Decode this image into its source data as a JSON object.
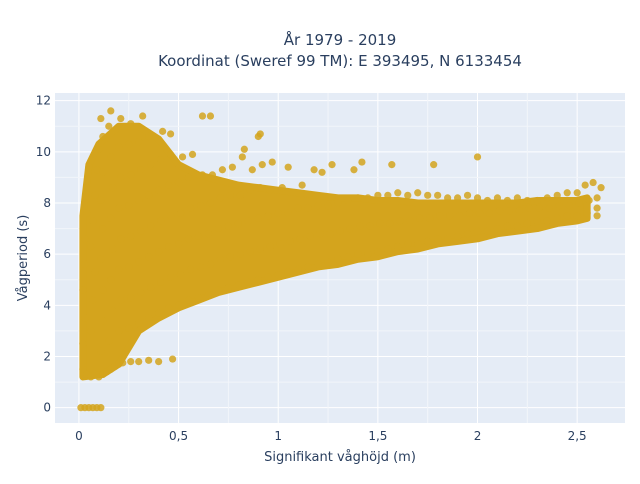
{
  "chart_data": {
    "type": "scatter",
    "title_lines": [
      "År 1979 - 2019",
      "Koordinat (Sweref 99 TM): E 393495, N 6133454"
    ],
    "xlabel": "Signifikant våghöjd (m)",
    "ylabel": "Vågperiod (s)",
    "xlim": [
      -0.12,
      2.74
    ],
    "ylim": [
      -0.6,
      12.3
    ],
    "x_ticks": [
      0,
      0.5,
      1,
      1.5,
      2,
      2.5
    ],
    "x_tick_labels": [
      "0",
      "0,5",
      "1",
      "1,5",
      "2",
      "2,5"
    ],
    "y_ticks": [
      0,
      2,
      4,
      6,
      8,
      10,
      12
    ],
    "y_tick_labels": [
      "0",
      "2",
      "4",
      "6",
      "8",
      "10",
      "12"
    ],
    "grid": true,
    "background": "#e5ecf6",
    "marker_color": "#d4a41d",
    "points": [
      [
        0.01,
        0
      ],
      [
        0.03,
        0
      ],
      [
        0.05,
        0
      ],
      [
        0.07,
        0
      ],
      [
        0.09,
        0
      ],
      [
        0.11,
        0
      ],
      [
        0.02,
        1.5
      ],
      [
        0.04,
        1.3
      ],
      [
        0.06,
        1.2
      ],
      [
        0.08,
        1.3
      ],
      [
        0.1,
        1.2
      ],
      [
        0.12,
        1.3
      ],
      [
        0.14,
        1.4
      ],
      [
        0.16,
        1.5
      ],
      [
        0.18,
        1.6
      ],
      [
        0.2,
        1.7
      ],
      [
        0.22,
        1.75
      ],
      [
        0.26,
        1.8
      ],
      [
        0.3,
        1.8
      ],
      [
        0.35,
        1.85
      ],
      [
        0.4,
        1.8
      ],
      [
        0.47,
        1.9
      ],
      [
        0.02,
        2.5
      ],
      [
        0.03,
        3.5
      ],
      [
        0.02,
        4.6
      ],
      [
        0.03,
        5.6
      ],
      [
        0.03,
        6.6
      ],
      [
        0.04,
        7.6
      ],
      [
        0.04,
        8.6
      ],
      [
        0.05,
        9.4
      ],
      [
        0.06,
        3.0
      ],
      [
        0.07,
        4.2
      ],
      [
        0.08,
        5.3
      ],
      [
        0.06,
        6.3
      ],
      [
        0.07,
        7.3
      ],
      [
        0.08,
        8.3
      ],
      [
        0.09,
        9.3
      ],
      [
        0.1,
        10.1
      ],
      [
        0.11,
        2.2
      ],
      [
        0.12,
        3.4
      ],
      [
        0.12,
        4.6
      ],
      [
        0.11,
        5.8
      ],
      [
        0.12,
        7.0
      ],
      [
        0.11,
        8.1
      ],
      [
        0.12,
        9.2
      ],
      [
        0.12,
        10.6
      ],
      [
        0.11,
        11.3
      ],
      [
        0.15,
        2.6
      ],
      [
        0.17,
        3.8
      ],
      [
        0.16,
        5.0
      ],
      [
        0.17,
        6.2
      ],
      [
        0.16,
        7.4
      ],
      [
        0.17,
        8.6
      ],
      [
        0.16,
        9.8
      ],
      [
        0.15,
        11.0
      ],
      [
        0.16,
        11.6
      ],
      [
        0.2,
        3.0
      ],
      [
        0.21,
        4.2
      ],
      [
        0.2,
        5.4
      ],
      [
        0.21,
        6.6
      ],
      [
        0.2,
        7.8
      ],
      [
        0.21,
        9.0
      ],
      [
        0.2,
        10.2
      ],
      [
        0.21,
        11.3
      ],
      [
        0.25,
        3.1
      ],
      [
        0.26,
        4.3
      ],
      [
        0.25,
        5.5
      ],
      [
        0.26,
        6.7
      ],
      [
        0.25,
        7.9
      ],
      [
        0.26,
        9.1
      ],
      [
        0.25,
        10.3
      ],
      [
        0.26,
        11.1
      ],
      [
        0.3,
        3.3
      ],
      [
        0.31,
        4.5
      ],
      [
        0.3,
        5.7
      ],
      [
        0.31,
        6.9
      ],
      [
        0.3,
        8.1
      ],
      [
        0.31,
        9.3
      ],
      [
        0.3,
        10.4
      ],
      [
        0.32,
        11.4
      ],
      [
        0.35,
        3.5
      ],
      [
        0.36,
        4.7
      ],
      [
        0.35,
        5.9
      ],
      [
        0.36,
        7.1
      ],
      [
        0.35,
        8.3
      ],
      [
        0.36,
        9.5
      ],
      [
        0.35,
        10.6
      ],
      [
        0.4,
        3.7
      ],
      [
        0.41,
        4.9
      ],
      [
        0.4,
        6.1
      ],
      [
        0.41,
        7.3
      ],
      [
        0.4,
        8.5
      ],
      [
        0.41,
        9.7
      ],
      [
        0.42,
        10.8
      ],
      [
        0.45,
        3.9
      ],
      [
        0.46,
        5.1
      ],
      [
        0.45,
        6.3
      ],
      [
        0.46,
        7.5
      ],
      [
        0.45,
        8.7
      ],
      [
        0.46,
        9.9
      ],
      [
        0.46,
        10.7
      ],
      [
        0.5,
        4.0
      ],
      [
        0.51,
        5.2
      ],
      [
        0.5,
        6.4
      ],
      [
        0.51,
        7.6
      ],
      [
        0.5,
        8.8
      ],
      [
        0.52,
        9.8
      ],
      [
        0.55,
        4.2
      ],
      [
        0.56,
        5.4
      ],
      [
        0.55,
        6.6
      ],
      [
        0.56,
        7.8
      ],
      [
        0.55,
        9.0
      ],
      [
        0.57,
        9.9
      ],
      [
        0.6,
        4.3
      ],
      [
        0.61,
        5.5
      ],
      [
        0.6,
        6.7
      ],
      [
        0.61,
        7.9
      ],
      [
        0.62,
        9.1
      ],
      [
        0.62,
        11.4
      ],
      [
        0.65,
        4.4
      ],
      [
        0.66,
        5.6
      ],
      [
        0.65,
        6.8
      ],
      [
        0.66,
        8.0
      ],
      [
        0.67,
        9.1
      ],
      [
        0.66,
        11.4
      ],
      [
        0.7,
        4.6
      ],
      [
        0.71,
        5.8
      ],
      [
        0.7,
        7.0
      ],
      [
        0.71,
        8.2
      ],
      [
        0.72,
        9.3
      ],
      [
        0.75,
        4.7
      ],
      [
        0.76,
        5.9
      ],
      [
        0.75,
        7.1
      ],
      [
        0.76,
        8.3
      ],
      [
        0.77,
        9.4
      ],
      [
        0.8,
        4.8
      ],
      [
        0.81,
        6.0
      ],
      [
        0.8,
        7.2
      ],
      [
        0.81,
        8.3
      ],
      [
        0.82,
        9.8
      ],
      [
        0.83,
        10.1
      ],
      [
        0.85,
        4.9
      ],
      [
        0.86,
        6.1
      ],
      [
        0.85,
        7.3
      ],
      [
        0.86,
        8.5
      ],
      [
        0.87,
        9.3
      ],
      [
        0.9,
        5.0
      ],
      [
        0.91,
        6.2
      ],
      [
        0.9,
        7.4
      ],
      [
        0.91,
        8.6
      ],
      [
        0.92,
        9.5
      ],
      [
        0.95,
        5.1
      ],
      [
        0.96,
        6.3
      ],
      [
        0.95,
        7.5
      ],
      [
        0.96,
        8.5
      ],
      [
        0.97,
        9.6
      ],
      [
        0.9,
        10.6
      ],
      [
        0.91,
        10.7
      ],
      [
        1.0,
        5.2
      ],
      [
        1.01,
        6.4
      ],
      [
        1.0,
        7.6
      ],
      [
        1.02,
        8.6
      ],
      [
        1.05,
        9.4
      ],
      [
        1.05,
        5.3
      ],
      [
        1.06,
        6.5
      ],
      [
        1.05,
        7.6
      ],
      [
        1.1,
        5.4
      ],
      [
        1.11,
        6.6
      ],
      [
        1.1,
        7.8
      ],
      [
        1.12,
        8.7
      ],
      [
        1.15,
        5.5
      ],
      [
        1.16,
        6.7
      ],
      [
        1.15,
        7.8
      ],
      [
        1.18,
        9.3
      ],
      [
        1.2,
        5.6
      ],
      [
        1.21,
        6.8
      ],
      [
        1.2,
        7.9
      ],
      [
        1.22,
        9.2
      ],
      [
        1.25,
        5.7
      ],
      [
        1.26,
        6.8
      ],
      [
        1.25,
        7.9
      ],
      [
        1.27,
        9.5
      ],
      [
        1.3,
        5.8
      ],
      [
        1.31,
        6.9
      ],
      [
        1.3,
        8.0
      ],
      [
        1.35,
        5.9
      ],
      [
        1.36,
        7.0
      ],
      [
        1.35,
        8.1
      ],
      [
        1.38,
        9.3
      ],
      [
        1.4,
        6.0
      ],
      [
        1.41,
        7.1
      ],
      [
        1.4,
        8.2
      ],
      [
        1.42,
        9.6
      ],
      [
        1.45,
        6.0
      ],
      [
        1.46,
        7.1
      ],
      [
        1.45,
        8.2
      ],
      [
        1.5,
        6.1
      ],
      [
        1.51,
        7.2
      ],
      [
        1.5,
        8.3
      ],
      [
        1.55,
        6.2
      ],
      [
        1.56,
        7.2
      ],
      [
        1.55,
        8.3
      ],
      [
        1.57,
        9.5
      ],
      [
        1.6,
        6.3
      ],
      [
        1.61,
        7.3
      ],
      [
        1.6,
        8.4
      ],
      [
        1.65,
        6.4
      ],
      [
        1.66,
        7.3
      ],
      [
        1.65,
        8.3
      ],
      [
        1.7,
        6.4
      ],
      [
        1.71,
        7.4
      ],
      [
        1.7,
        8.4
      ],
      [
        1.75,
        6.5
      ],
      [
        1.76,
        7.4
      ],
      [
        1.75,
        8.3
      ],
      [
        1.78,
        9.5
      ],
      [
        1.8,
        6.6
      ],
      [
        1.81,
        7.5
      ],
      [
        1.8,
        8.3
      ],
      [
        1.85,
        6.6
      ],
      [
        1.86,
        7.5
      ],
      [
        1.85,
        8.2
      ],
      [
        1.9,
        6.7
      ],
      [
        1.91,
        7.5
      ],
      [
        1.9,
        8.2
      ],
      [
        1.95,
        6.8
      ],
      [
        1.96,
        7.6
      ],
      [
        1.95,
        8.3
      ],
      [
        2.0,
        6.9
      ],
      [
        2.01,
        7.6
      ],
      [
        2.0,
        8.2
      ],
      [
        2.0,
        9.8
      ],
      [
        2.05,
        6.9
      ],
      [
        2.06,
        7.6
      ],
      [
        2.05,
        8.1
      ],
      [
        2.1,
        7.0
      ],
      [
        2.11,
        7.7
      ],
      [
        2.1,
        8.2
      ],
      [
        2.15,
        7.1
      ],
      [
        2.16,
        7.7
      ],
      [
        2.15,
        8.1
      ],
      [
        2.2,
        7.1
      ],
      [
        2.21,
        7.7
      ],
      [
        2.2,
        8.2
      ],
      [
        2.25,
        7.2
      ],
      [
        2.26,
        7.8
      ],
      [
        2.25,
        8.1
      ],
      [
        2.3,
        7.3
      ],
      [
        2.31,
        7.8
      ],
      [
        2.3,
        8.1
      ],
      [
        2.35,
        7.3
      ],
      [
        2.36,
        7.8
      ],
      [
        2.35,
        8.2
      ],
      [
        2.4,
        7.4
      ],
      [
        2.41,
        7.9
      ],
      [
        2.4,
        8.3
      ],
      [
        2.45,
        7.5
      ],
      [
        2.46,
        7.9
      ],
      [
        2.45,
        8.4
      ],
      [
        2.5,
        7.5
      ],
      [
        2.51,
        8.0
      ],
      [
        2.5,
        8.4
      ],
      [
        2.55,
        7.6
      ],
      [
        2.56,
        8.1
      ],
      [
        2.54,
        8.7
      ],
      [
        2.6,
        7.8
      ],
      [
        2.6,
        8.2
      ],
      [
        2.58,
        8.8
      ],
      [
        2.62,
        8.6
      ],
      [
        2.6,
        7.5
      ]
    ],
    "density_band": {
      "lower": [
        [
          0.02,
          1.2
        ],
        [
          0.12,
          1.3
        ],
        [
          0.2,
          1.7
        ],
        [
          0.3,
          3.0
        ],
        [
          0.4,
          3.5
        ],
        [
          0.5,
          3.9
        ],
        [
          0.6,
          4.2
        ],
        [
          0.7,
          4.5
        ],
        [
          0.8,
          4.7
        ],
        [
          0.9,
          4.9
        ],
        [
          1.0,
          5.1
        ],
        [
          1.1,
          5.3
        ],
        [
          1.2,
          5.5
        ],
        [
          1.3,
          5.6
        ],
        [
          1.4,
          5.8
        ],
        [
          1.5,
          5.9
        ],
        [
          1.6,
          6.1
        ],
        [
          1.7,
          6.2
        ],
        [
          1.8,
          6.4
        ],
        [
          1.9,
          6.5
        ],
        [
          2.0,
          6.6
        ],
        [
          2.1,
          6.8
        ],
        [
          2.2,
          6.9
        ],
        [
          2.3,
          7.0
        ],
        [
          2.4,
          7.2
        ],
        [
          2.5,
          7.3
        ],
        [
          2.55,
          7.4
        ]
      ],
      "upper": [
        [
          0.02,
          7.5
        ],
        [
          0.05,
          9.5
        ],
        [
          0.1,
          10.3
        ],
        [
          0.2,
          11.0
        ],
        [
          0.3,
          11.0
        ],
        [
          0.4,
          10.5
        ],
        [
          0.5,
          9.5
        ],
        [
          0.6,
          9.1
        ],
        [
          0.7,
          8.9
        ],
        [
          0.8,
          8.7
        ],
        [
          0.9,
          8.6
        ],
        [
          1.0,
          8.5
        ],
        [
          1.1,
          8.4
        ],
        [
          1.2,
          8.3
        ],
        [
          1.3,
          8.2
        ],
        [
          1.4,
          8.2
        ],
        [
          1.5,
          8.1
        ],
        [
          1.6,
          8.1
        ],
        [
          1.7,
          8.0
        ],
        [
          1.8,
          8.0
        ],
        [
          1.9,
          8.0
        ],
        [
          2.0,
          8.0
        ],
        [
          2.1,
          8.0
        ],
        [
          2.2,
          8.0
        ],
        [
          2.3,
          8.1
        ],
        [
          2.4,
          8.1
        ],
        [
          2.5,
          8.1
        ],
        [
          2.55,
          8.2
        ]
      ]
    }
  }
}
